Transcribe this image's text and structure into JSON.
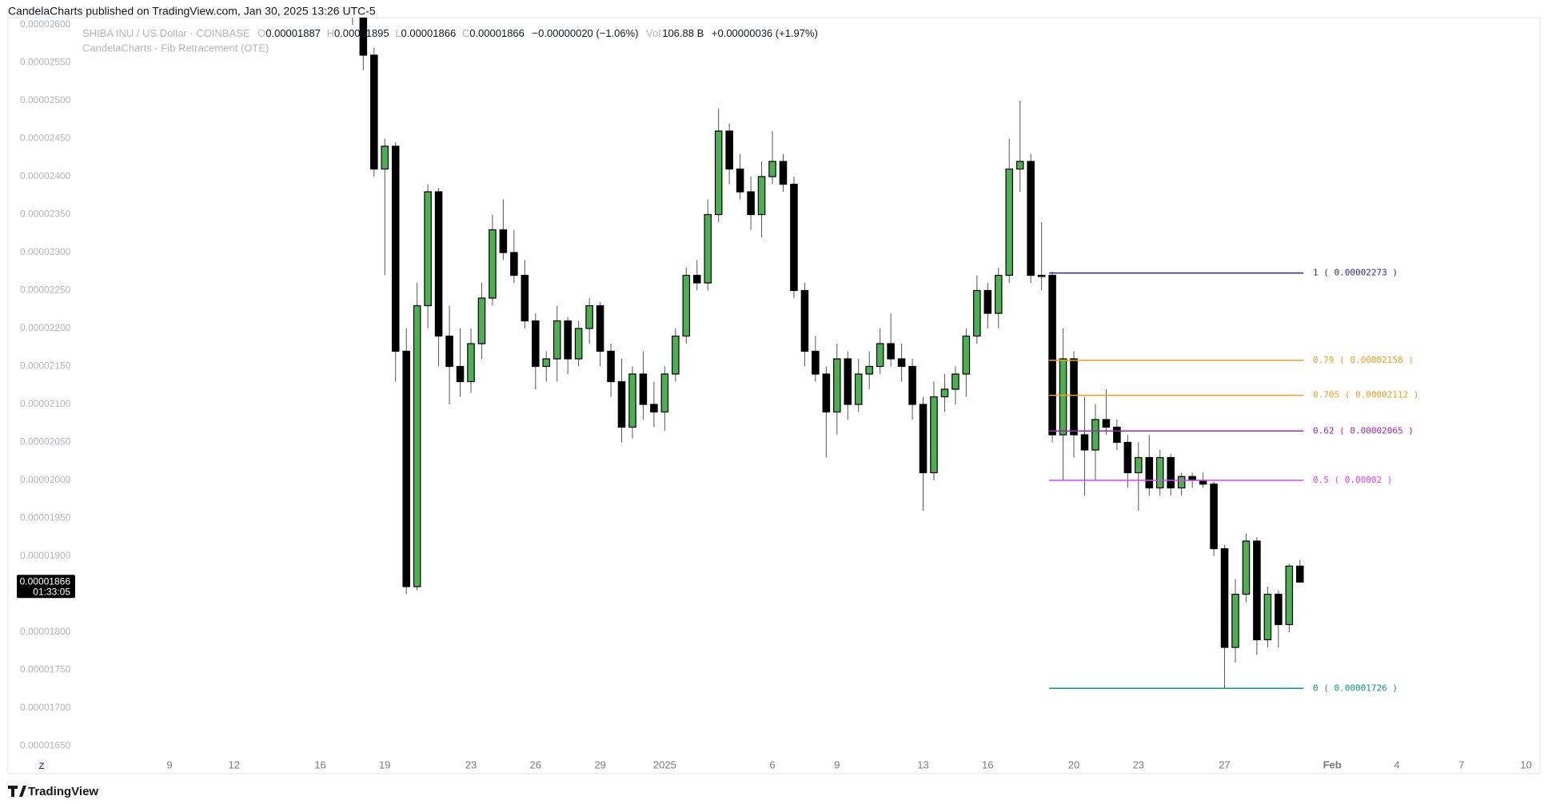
{
  "header": {
    "byline": "CandelaCharts published on TradingView.com, Jan 30, 2025 13:26 UTC-5",
    "symbol": "SHIBA INU / US Dollar · COINBASE",
    "open_label": "O",
    "open": "0.00001887",
    "high_label": "H",
    "high": "0.00001895",
    "low_label": "L",
    "low": "0.00001866",
    "close_label": "C",
    "close": "0.00001866",
    "change": "−0.00000020 (−1.06%)",
    "volume_label": "Vol",
    "volume": "106.88 B",
    "volume_change": "+0.00000036 (+1.97%)",
    "indicator": "CandelaCharts - Fib Retracement (OTE)"
  },
  "chart_data": {
    "type": "candlestick",
    "x": [
      8.5,
      9,
      9.5,
      10,
      10.5,
      11,
      11.5,
      12,
      12.5,
      13,
      13.5,
      14,
      14.5,
      15,
      15.5,
      16,
      16.5,
      17,
      17.5,
      18,
      18.5,
      19,
      19.5,
      20,
      20.5,
      21,
      21.5,
      22,
      22.5,
      23,
      23.5,
      24,
      24.5,
      25,
      25.5,
      26,
      26.5,
      27,
      27.5,
      28,
      28.5,
      29,
      29.5,
      30,
      30.5,
      31,
      31.5,
      32,
      32.5,
      33,
      33.5,
      34,
      34.5,
      35,
      35.5,
      36,
      36.5,
      37,
      37.5,
      38,
      38.5,
      39,
      39.5,
      40,
      40.5,
      41,
      41.5,
      42,
      42.5,
      43,
      43.5,
      44,
      44.5,
      45,
      45.5,
      46,
      46.5,
      47,
      47.5,
      48,
      48.5,
      49,
      49.5,
      50,
      50.5,
      51,
      51.5,
      52,
      52.5
    ],
    "open": [
      2.66e-05,
      2.62e-05,
      2.56e-05,
      2.41e-05,
      2.44e-05,
      2.17e-05,
      1.86e-05,
      2.23e-05,
      2.38e-05,
      2.19e-05,
      2.15e-05,
      2.13e-05,
      2.18e-05,
      2.24e-05,
      2.33e-05,
      2.3e-05,
      2.27e-05,
      2.21e-05,
      2.15e-05,
      2.16e-05,
      2.21e-05,
      2.16e-05,
      2.2e-05,
      2.23e-05,
      2.17e-05,
      2.13e-05,
      2.07e-05,
      2.14e-05,
      2.1e-05,
      2.09e-05,
      2.14e-05,
      2.19e-05,
      2.27e-05,
      2.26e-05,
      2.35e-05,
      2.46e-05,
      2.41e-05,
      2.38e-05,
      2.35e-05,
      2.4e-05,
      2.42e-05,
      2.39e-05,
      2.25e-05,
      2.17e-05,
      2.14e-05,
      2.09e-05,
      2.16e-05,
      2.1e-05,
      2.14e-05,
      2.15e-05,
      2.18e-05,
      2.16e-05,
      2.15e-05,
      2.1e-05,
      2.01e-05,
      2.11e-05,
      2.12e-05,
      2.14e-05,
      2.19e-05,
      2.25e-05,
      2.22e-05,
      2.27e-05,
      2.41e-05,
      2.42e-05,
      2.27e-05,
      2.27e-05,
      2.06e-05,
      2.16e-05,
      2.06e-05,
      2.04e-05,
      2.08e-05,
      2.07e-05,
      2.05e-05,
      2.01e-05,
      2.03e-05,
      1.99e-05,
      2.03e-05,
      1.99e-05,
      2.005e-05,
      2e-05,
      1.995e-05,
      1.91e-05,
      1.78e-05,
      1.85e-05,
      1.92e-05,
      1.79e-05,
      1.85e-05,
      1.81e-05,
      1.887e-05
    ],
    "high": [
      2.7e-05,
      2.64e-05,
      2.57e-05,
      2.45e-05,
      2.445e-05,
      2.2e-05,
      2.26e-05,
      2.39e-05,
      2.385e-05,
      2.23e-05,
      2.2e-05,
      2.2e-05,
      2.26e-05,
      2.35e-05,
      2.37e-05,
      2.33e-05,
      2.29e-05,
      2.22e-05,
      2.17e-05,
      2.23e-05,
      2.215e-05,
      2.21e-05,
      2.24e-05,
      2.235e-05,
      2.18e-05,
      2.16e-05,
      2.15e-05,
      2.17e-05,
      2.13e-05,
      2.15e-05,
      2.2e-05,
      2.28e-05,
      2.29e-05,
      2.37e-05,
      2.49e-05,
      2.47e-05,
      2.43e-05,
      2.4e-05,
      2.42e-05,
      2.46e-05,
      2.43e-05,
      2.4e-05,
      2.26e-05,
      2.19e-05,
      2.15e-05,
      2.18e-05,
      2.17e-05,
      2.16e-05,
      2.17e-05,
      2.2e-05,
      2.22e-05,
      2.18e-05,
      2.16e-05,
      2.11e-05,
      2.13e-05,
      2.14e-05,
      2.15e-05,
      2.2e-05,
      2.27e-05,
      2.26e-05,
      2.28e-05,
      2.45e-05,
      2.5e-05,
      2.43e-05,
      2.34e-05,
      2.275e-05,
      2.2e-05,
      2.17e-05,
      2.11e-05,
      2.1e-05,
      2.12e-05,
      2.08e-05,
      2.06e-05,
      2.05e-05,
      2.06e-05,
      2.04e-05,
      2.035e-05,
      2.01e-05,
      2.01e-05,
      2.01e-05,
      1.998e-05,
      1.915e-05,
      1.87e-05,
      1.93e-05,
      1.925e-05,
      1.86e-05,
      1.855e-05,
      1.89e-05,
      1.895e-05
    ],
    "low": [
      2.6e-05,
      2.54e-05,
      2.4e-05,
      2.27e-05,
      2.13e-05,
      1.85e-05,
      1.855e-05,
      2.2e-05,
      2.15e-05,
      2.1e-05,
      2.11e-05,
      2.115e-05,
      2.16e-05,
      2.23e-05,
      2.29e-05,
      2.26e-05,
      2.2e-05,
      2.12e-05,
      2.13e-05,
      2.13e-05,
      2.14e-05,
      2.15e-05,
      2.18e-05,
      2.15e-05,
      2.11e-05,
      2.05e-05,
      2.055e-05,
      2.08e-05,
      2.07e-05,
      2.065e-05,
      2.13e-05,
      2.18e-05,
      2.25e-05,
      2.25e-05,
      2.34e-05,
      2.39e-05,
      2.37e-05,
      2.33e-05,
      2.32e-05,
      2.39e-05,
      2.38e-05,
      2.24e-05,
      2.15e-05,
      2.13e-05,
      2.03e-05,
      2.06e-05,
      2.08e-05,
      2.09e-05,
      2.12e-05,
      2.14e-05,
      2.15e-05,
      2.13e-05,
      2.08e-05,
      1.96e-05,
      2e-05,
      2.09e-05,
      2.1e-05,
      2.11e-05,
      2.18e-05,
      2.2e-05,
      2.2e-05,
      2.26e-05,
      2.38e-05,
      2.26e-05,
      2.25e-05,
      2.05e-05,
      2e-05,
      2.03e-05,
      1.98e-05,
      2e-05,
      2.06e-05,
      2.04e-05,
      1.99e-05,
      1.96e-05,
      1.98e-05,
      1.98e-05,
      1.98e-05,
      1.98e-05,
      1.99e-05,
      1.99e-05,
      1.9e-05,
      1.726e-05,
      1.76e-05,
      1.84e-05,
      1.77e-05,
      1.78e-05,
      1.78e-05,
      1.8e-05,
      1.866e-05
    ],
    "close": [
      2.62e-05,
      2.56e-05,
      2.41e-05,
      2.44e-05,
      2.17e-05,
      1.86e-05,
      2.23e-05,
      2.38e-05,
      2.19e-05,
      2.15e-05,
      2.13e-05,
      2.18e-05,
      2.24e-05,
      2.33e-05,
      2.3e-05,
      2.27e-05,
      2.21e-05,
      2.15e-05,
      2.16e-05,
      2.21e-05,
      2.16e-05,
      2.2e-05,
      2.23e-05,
      2.17e-05,
      2.13e-05,
      2.07e-05,
      2.14e-05,
      2.1e-05,
      2.09e-05,
      2.14e-05,
      2.19e-05,
      2.27e-05,
      2.26e-05,
      2.35e-05,
      2.46e-05,
      2.41e-05,
      2.38e-05,
      2.35e-05,
      2.4e-05,
      2.42e-05,
      2.39e-05,
      2.25e-05,
      2.17e-05,
      2.14e-05,
      2.09e-05,
      2.16e-05,
      2.1e-05,
      2.14e-05,
      2.15e-05,
      2.18e-05,
      2.16e-05,
      2.15e-05,
      2.1e-05,
      2.01e-05,
      2.11e-05,
      2.12e-05,
      2.14e-05,
      2.19e-05,
      2.25e-05,
      2.22e-05,
      2.27e-05,
      2.41e-05,
      2.42e-05,
      2.27e-05,
      2.27e-05,
      2.06e-05,
      2.16e-05,
      2.06e-05,
      2.04e-05,
      2.08e-05,
      2.07e-05,
      2.05e-05,
      2.01e-05,
      2.03e-05,
      1.99e-05,
      2.03e-05,
      1.99e-05,
      2.005e-05,
      2e-05,
      1.995e-05,
      1.91e-05,
      1.78e-05,
      1.85e-05,
      1.92e-05,
      1.79e-05,
      1.85e-05,
      1.81e-05,
      1.887e-05,
      1.866e-05
    ],
    "up_color": "#4caf50",
    "down_color": "#000000",
    "xlim": [
      -7.5,
      63.5
    ],
    "xticks": [
      {
        "value": 0,
        "label": "9"
      },
      {
        "value": 3,
        "label": "12"
      },
      {
        "value": 7,
        "label": "16"
      },
      {
        "value": 10,
        "label": "19"
      },
      {
        "value": 14,
        "label": "23"
      },
      {
        "value": 17,
        "label": "26"
      },
      {
        "value": 20,
        "label": "29"
      },
      {
        "value": 23,
        "label": "2025"
      },
      {
        "value": 28,
        "label": "6"
      },
      {
        "value": 31,
        "label": "9"
      },
      {
        "value": 35,
        "label": "13"
      },
      {
        "value": 38,
        "label": "16"
      },
      {
        "value": 42,
        "label": "20"
      },
      {
        "value": 45,
        "label": "23"
      },
      {
        "value": 49,
        "label": "27"
      },
      {
        "value": 54,
        "label": "Feb"
      },
      {
        "value": 57,
        "label": "4"
      },
      {
        "value": 60,
        "label": "7"
      },
      {
        "value": 63,
        "label": "10"
      }
    ],
    "ylim": [
      1.63e-05,
      2.61e-05
    ],
    "yticks": [
      {
        "value": 2.6e-05,
        "label": "0.00002600"
      },
      {
        "value": 2.55e-05,
        "label": "0.00002550"
      },
      {
        "value": 2.5e-05,
        "label": "0.00002500"
      },
      {
        "value": 2.45e-05,
        "label": "0.00002450"
      },
      {
        "value": 2.4e-05,
        "label": "0.00002400"
      },
      {
        "value": 2.35e-05,
        "label": "0.00002350"
      },
      {
        "value": 2.3e-05,
        "label": "0.00002300"
      },
      {
        "value": 2.25e-05,
        "label": "0.00002250"
      },
      {
        "value": 2.2e-05,
        "label": "0.00002200"
      },
      {
        "value": 2.15e-05,
        "label": "0.00002150"
      },
      {
        "value": 2.1e-05,
        "label": "0.00002100"
      },
      {
        "value": 2.05e-05,
        "label": "0.00002050"
      },
      {
        "value": 2e-05,
        "label": "0.00002000"
      },
      {
        "value": 1.95e-05,
        "label": "0.00001950"
      },
      {
        "value": 1.9e-05,
        "label": "0.00001900"
      },
      {
        "value": 1.8e-05,
        "label": "0.00001800"
      },
      {
        "value": 1.75e-05,
        "label": "0.00001750"
      },
      {
        "value": 1.7e-05,
        "label": "0.00001700"
      },
      {
        "value": 1.65e-05,
        "label": "0.00001650"
      }
    ],
    "grid": false,
    "fib_levels": [
      {
        "label": "1 ( 0.00002273 )",
        "price": 2.273e-05,
        "color": "#2a2a8c"
      },
      {
        "label": "0.79 ( 0.00002158 )",
        "price": 2.158e-05,
        "color": "#f59d1e"
      },
      {
        "label": "0.705 ( 0.00002112 )",
        "price": 2.112e-05,
        "color": "#f59d1e"
      },
      {
        "label": "0.62 ( 0.00002065 )",
        "price": 2.065e-05,
        "color": "#9c27b0"
      },
      {
        "label": "0.5 ( 0.00002 )",
        "price": 2e-05,
        "color": "#e040fb"
      },
      {
        "label": "0 ( 0.00001726 )",
        "price": 1.726e-05,
        "color": "#089981"
      }
    ],
    "last_price": {
      "value": 1.866e-05,
      "label": "0.00001866",
      "countdown": "01:33:05"
    }
  },
  "footer": {
    "scale_button": "Z",
    "logo": "TradingView"
  }
}
